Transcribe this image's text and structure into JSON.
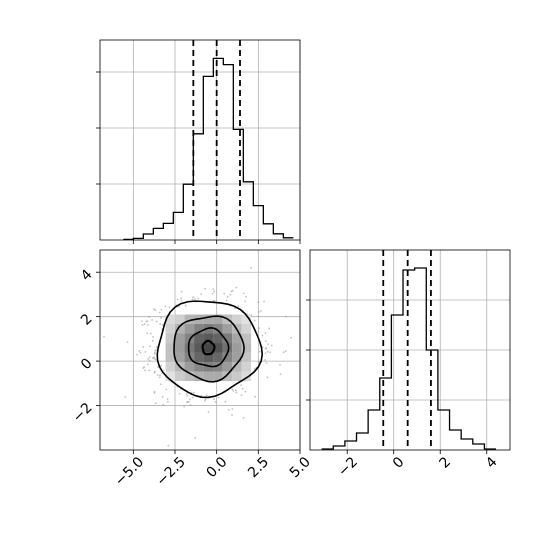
{
  "chart_data": {
    "type": "corner",
    "title": "",
    "colors": {
      "line": "#000000",
      "grid": "#b0b0b0",
      "points": "#8c8c8c"
    },
    "grid": true,
    "panels": {
      "hist_x": {
        "type": "histogram",
        "xlim": [
          -7.0,
          5.0
        ],
        "ylim": [
          0,
          1.0
        ],
        "bin_edges": [
          -5.6,
          -5.0,
          -4.4,
          -3.8,
          -3.2,
          -2.6,
          -2.0,
          -1.4,
          -0.8,
          -0.2,
          0.4,
          1.0,
          1.6,
          2.2,
          2.8,
          3.4,
          4.0,
          4.6
        ],
        "heights": [
          0.003,
          0.008,
          0.03,
          0.058,
          0.083,
          0.138,
          0.279,
          0.531,
          0.818,
          0.908,
          0.877,
          0.553,
          0.291,
          0.172,
          0.081,
          0.031,
          0.011
        ],
        "quantiles": [
          -1.4,
          0.0,
          1.4
        ],
        "yticks": [
          0.28,
          0.56,
          0.84
        ],
        "xtick_labels": []
      },
      "hist_y": {
        "type": "histogram",
        "xlim": [
          -3.6,
          5.0
        ],
        "ylim": [
          0,
          1.0
        ],
        "bin_edges": [
          -3.1,
          -2.6,
          -2.1,
          -1.6,
          -1.1,
          -0.6,
          -0.1,
          0.4,
          0.9,
          1.4,
          1.9,
          2.4,
          2.9,
          3.4,
          3.9,
          4.4
        ],
        "heights": [
          0.005,
          0.02,
          0.045,
          0.085,
          0.2,
          0.36,
          0.675,
          0.9,
          0.91,
          0.5,
          0.2,
          0.1,
          0.055,
          0.03,
          0.005
        ],
        "quantiles": [
          -0.45,
          0.6,
          1.6
        ],
        "xticks": [
          -2,
          0,
          2,
          4
        ],
        "xtick_labels": [
          "−2",
          "0",
          "2",
          "4"
        ],
        "yticks": [
          0.25,
          0.5,
          0.75
        ]
      },
      "scatter": {
        "type": "scatter_density",
        "xlim": [
          -7.0,
          5.0
        ],
        "ylim": [
          -4.0,
          5.0
        ],
        "center": [
          -0.5,
          0.6
        ],
        "xticks": [
          -5.0,
          -2.5,
          0.0,
          2.5,
          5.0
        ],
        "xtick_labels": [
          "−5.0",
          "−2.5",
          "0.0",
          "2.5",
          "5.0"
        ],
        "yticks": [
          -2,
          0,
          2,
          4
        ],
        "ytick_labels": [
          "−2",
          "0",
          "2",
          "4"
        ],
        "density_levels": [
          0.12,
          0.3,
          0.55,
          0.8
        ],
        "contour_radii": [
          {
            "rx": 3.1,
            "ry": 2.15
          },
          {
            "rx": 2.1,
            "ry": 1.45
          },
          {
            "rx": 1.2,
            "ry": 0.85
          },
          {
            "rx": 0.35,
            "ry": 0.3
          }
        ]
      }
    }
  }
}
